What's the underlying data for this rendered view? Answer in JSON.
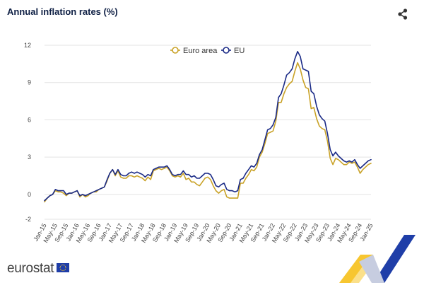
{
  "header": {
    "title": "Annual inflation rates (%)",
    "share_icon": "share-icon"
  },
  "footer": {
    "brand": "eurostat",
    "flag_icon": "eu-flag-icon"
  },
  "colors": {
    "euro_area": "#c9a227",
    "eu": "#1a2a86",
    "grid": "#e3e3e3",
    "deco_blue": "#1f3ea8",
    "deco_yellow": "#f7c630"
  },
  "chart_data": {
    "type": "line",
    "title": "Annual inflation rates (%)",
    "xlabel": "",
    "ylabel": "",
    "ylim": [
      -2,
      12
    ],
    "y_ticks": [
      -2,
      0,
      3,
      6,
      9,
      12
    ],
    "grid": true,
    "legend_position": "top",
    "x_tick_labels": [
      "Jan-15",
      "May-15",
      "Sep-15",
      "Jan-16",
      "May-16",
      "Sep-16",
      "Jan-17",
      "May-17",
      "Sep-17",
      "Jan-18",
      "May-18",
      "Sep-18",
      "Jan-19",
      "May-19",
      "Sep-19",
      "Jan-20",
      "May-20",
      "Sep-20",
      "Jan-21",
      "May-21",
      "Sep-21",
      "Jan-22",
      "May-22",
      "Sep-22",
      "Jan-23",
      "May-23",
      "Sep-23",
      "Jan-24",
      "May-24",
      "Sep-24",
      "Jan-25"
    ],
    "x": [
      "Jan-15",
      "Feb-15",
      "Mar-15",
      "Apr-15",
      "May-15",
      "Jun-15",
      "Jul-15",
      "Aug-15",
      "Sep-15",
      "Oct-15",
      "Nov-15",
      "Dec-15",
      "Jan-16",
      "Feb-16",
      "Mar-16",
      "Apr-16",
      "May-16",
      "Jun-16",
      "Jul-16",
      "Aug-16",
      "Sep-16",
      "Oct-16",
      "Nov-16",
      "Dec-16",
      "Jan-17",
      "Feb-17",
      "Mar-17",
      "Apr-17",
      "May-17",
      "Jun-17",
      "Jul-17",
      "Aug-17",
      "Sep-17",
      "Oct-17",
      "Nov-17",
      "Dec-17",
      "Jan-18",
      "Feb-18",
      "Mar-18",
      "Apr-18",
      "May-18",
      "Jun-18",
      "Jul-18",
      "Aug-18",
      "Sep-18",
      "Oct-18",
      "Nov-18",
      "Dec-18",
      "Jan-19",
      "Feb-19",
      "Mar-19",
      "Apr-19",
      "May-19",
      "Jun-19",
      "Jul-19",
      "Aug-19",
      "Sep-19",
      "Oct-19",
      "Nov-19",
      "Dec-19",
      "Jan-20",
      "Feb-20",
      "Mar-20",
      "Apr-20",
      "May-20",
      "Jun-20",
      "Jul-20",
      "Aug-20",
      "Sep-20",
      "Oct-20",
      "Nov-20",
      "Dec-20",
      "Jan-21",
      "Feb-21",
      "Mar-21",
      "Apr-21",
      "May-21",
      "Jun-21",
      "Jul-21",
      "Aug-21",
      "Sep-21",
      "Oct-21",
      "Nov-21",
      "Dec-21",
      "Jan-22",
      "Feb-22",
      "Mar-22",
      "Apr-22",
      "May-22",
      "Jun-22",
      "Jul-22",
      "Aug-22",
      "Sep-22",
      "Oct-22",
      "Nov-22",
      "Dec-22",
      "Jan-23",
      "Feb-23",
      "Mar-23",
      "Apr-23",
      "May-23",
      "Jun-23",
      "Jul-23",
      "Aug-23",
      "Sep-23",
      "Oct-23",
      "Nov-23",
      "Dec-23",
      "Jan-24",
      "Feb-24",
      "Mar-24",
      "Apr-24",
      "May-24",
      "Jun-24",
      "Jul-24",
      "Aug-24",
      "Sep-24",
      "Oct-24",
      "Nov-24",
      "Dec-24",
      "Jan-25"
    ],
    "series": [
      {
        "name": "Euro area",
        "values": [
          -0.6,
          -0.3,
          -0.1,
          0.0,
          0.3,
          0.2,
          0.2,
          0.1,
          -0.1,
          0.1,
          0.1,
          0.2,
          0.3,
          -0.2,
          0.0,
          -0.2,
          -0.1,
          0.1,
          0.2,
          0.2,
          0.4,
          0.5,
          0.6,
          1.1,
          1.7,
          2.0,
          1.5,
          1.9,
          1.4,
          1.3,
          1.3,
          1.5,
          1.5,
          1.4,
          1.5,
          1.4,
          1.3,
          1.1,
          1.4,
          1.2,
          1.9,
          2.0,
          2.1,
          2.0,
          2.1,
          2.2,
          1.9,
          1.5,
          1.4,
          1.5,
          1.4,
          1.7,
          1.2,
          1.3,
          1.0,
          1.0,
          0.8,
          0.7,
          1.0,
          1.3,
          1.4,
          1.2,
          0.7,
          0.3,
          0.1,
          0.3,
          0.4,
          -0.2,
          -0.3,
          -0.3,
          -0.3,
          -0.3,
          0.9,
          0.9,
          1.3,
          1.6,
          2.0,
          1.9,
          2.2,
          3.0,
          3.4,
          4.1,
          4.9,
          5.0,
          5.1,
          5.9,
          7.4,
          7.4,
          8.1,
          8.6,
          8.9,
          9.1,
          9.9,
          10.6,
          10.1,
          9.2,
          8.6,
          8.5,
          6.9,
          7.0,
          6.1,
          5.5,
          5.3,
          5.2,
          4.3,
          2.9,
          2.4,
          2.9,
          2.8,
          2.6,
          2.4,
          2.4,
          2.6,
          2.5,
          2.6,
          2.2,
          1.7,
          2.0,
          2.2,
          2.4,
          2.5
        ]
      },
      {
        "name": "EU",
        "values": [
          -0.5,
          -0.3,
          -0.1,
          0.0,
          0.4,
          0.3,
          0.3,
          0.3,
          0.0,
          0.1,
          0.1,
          0.2,
          0.3,
          -0.1,
          0.0,
          -0.1,
          0.0,
          0.1,
          0.2,
          0.3,
          0.4,
          0.5,
          0.6,
          1.2,
          1.7,
          2.0,
          1.6,
          2.0,
          1.6,
          1.5,
          1.5,
          1.7,
          1.8,
          1.7,
          1.8,
          1.7,
          1.6,
          1.4,
          1.6,
          1.5,
          2.0,
          2.1,
          2.2,
          2.2,
          2.2,
          2.3,
          2.0,
          1.6,
          1.5,
          1.6,
          1.6,
          1.9,
          1.6,
          1.6,
          1.4,
          1.5,
          1.3,
          1.3,
          1.5,
          1.7,
          1.7,
          1.6,
          1.2,
          0.7,
          0.6,
          0.8,
          0.9,
          0.4,
          0.3,
          0.3,
          0.2,
          0.3,
          1.2,
          1.3,
          1.7,
          2.0,
          2.3,
          2.2,
          2.5,
          3.2,
          3.6,
          4.4,
          5.2,
          5.3,
          5.6,
          6.2,
          7.8,
          8.1,
          8.8,
          9.6,
          9.8,
          10.1,
          10.9,
          11.5,
          11.1,
          10.1,
          10.0,
          9.9,
          8.3,
          8.1,
          7.1,
          6.4,
          6.1,
          5.9,
          4.9,
          3.6,
          3.1,
          3.4,
          3.1,
          2.9,
          2.7,
          2.6,
          2.7,
          2.6,
          2.8,
          2.4,
          2.1,
          2.3,
          2.5,
          2.7,
          2.8
        ]
      }
    ]
  }
}
